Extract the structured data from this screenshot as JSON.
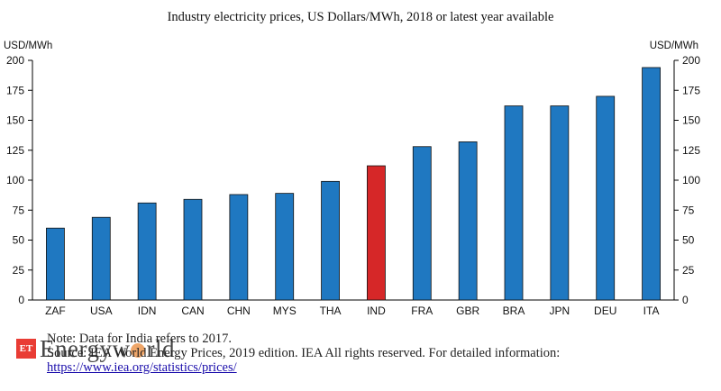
{
  "chart_data": {
    "type": "bar",
    "title": "Industry electricity prices, US Dollars/MWh, 2018 or latest year available",
    "ylabel_left": "USD/MWh",
    "ylabel_right": "USD/MWh",
    "ylim": [
      0,
      200
    ],
    "yticks": [
      "0",
      "25",
      "50",
      "75",
      "100",
      "125",
      "150",
      "175",
      "200"
    ],
    "categories": [
      "ZAF",
      "USA",
      "IDN",
      "CAN",
      "CHN",
      "MYS",
      "THA",
      "IND",
      "FRA",
      "GBR",
      "BRA",
      "JPN",
      "DEU",
      "ITA"
    ],
    "values": [
      60,
      69,
      81,
      84,
      88,
      89,
      99,
      112,
      128,
      132,
      162,
      162,
      170,
      194
    ],
    "colors": {
      "default": "#1f78c1",
      "highlight": "#d62728",
      "highlight_category": "IND"
    },
    "grid": false,
    "legend": "none"
  },
  "notes": {
    "note": "Note: Data for India refers to 2017.",
    "source": "Source: IEA World Energy Prices, 2019 edition. IEA All rights reserved. For detailed information:",
    "link": "https://www.iea.org/statistics/prices/"
  },
  "watermark": {
    "badge": "ET",
    "text_before": "Energyw",
    "text_after": "rld",
    "icon": "globe-icon"
  }
}
